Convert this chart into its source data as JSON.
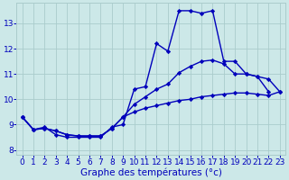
{
  "xlabel": "Graphe des températures (°c)",
  "hours": [
    0,
    1,
    2,
    3,
    4,
    5,
    6,
    7,
    8,
    9,
    10,
    11,
    12,
    13,
    14,
    15,
    16,
    17,
    18,
    19,
    20,
    21,
    22,
    23
  ],
  "line1": [
    9.3,
    8.8,
    8.9,
    8.6,
    8.5,
    8.5,
    8.5,
    8.5,
    8.9,
    9.0,
    10.4,
    10.5,
    12.2,
    11.9,
    13.5,
    13.5,
    13.4,
    13.5,
    11.5,
    11.5,
    11.0,
    10.9,
    10.3,
    null
  ],
  "line2": [
    9.3,
    8.8,
    8.85,
    8.75,
    8.6,
    8.55,
    8.55,
    8.55,
    8.85,
    9.3,
    9.8,
    10.1,
    10.4,
    10.6,
    11.05,
    11.3,
    11.5,
    11.55,
    11.4,
    11.0,
    11.0,
    10.9,
    10.8,
    10.3
  ],
  "line3": [
    9.3,
    8.8,
    8.85,
    8.75,
    8.6,
    8.55,
    8.55,
    8.55,
    8.85,
    9.3,
    9.5,
    9.65,
    9.75,
    9.85,
    9.95,
    10.0,
    10.1,
    10.15,
    10.2,
    10.25,
    10.25,
    10.2,
    10.15,
    10.3
  ],
  "line_color": "#0000bb",
  "bg_color": "#cce8e8",
  "grid_color": "#aacccc",
  "ylim": [
    7.8,
    13.8
  ],
  "xlim": [
    -0.5,
    23.5
  ],
  "yticks": [
    8,
    9,
    10,
    11,
    12,
    13
  ],
  "xticks": [
    0,
    1,
    2,
    3,
    4,
    5,
    6,
    7,
    8,
    9,
    10,
    11,
    12,
    13,
    14,
    15,
    16,
    17,
    18,
    19,
    20,
    21,
    22,
    23
  ],
  "marker": "D",
  "markersize": 2.2,
  "linewidth": 1.0,
  "fontsize_xlabel": 7.5,
  "fontsize_ticks": 6.5,
  "axis_label_color": "#0000bb",
  "tick_color": "#0000bb"
}
